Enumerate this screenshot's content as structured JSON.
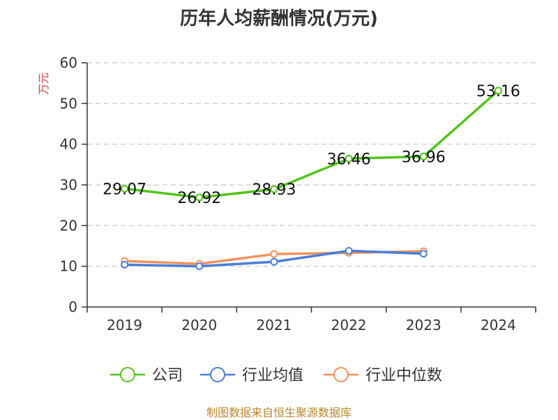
{
  "chart_data": {
    "type": "line",
    "title": "历年人均薪酬情况(万元)",
    "ylabel": "万元",
    "xlabel": "",
    "categories": [
      "2019",
      "2020",
      "2021",
      "2022",
      "2023",
      "2024"
    ],
    "ylim": [
      0,
      60
    ],
    "yticks": [
      0,
      10,
      20,
      30,
      40,
      50,
      60
    ],
    "grid": true,
    "legend_position": "bottom",
    "series": [
      {
        "name": "公司",
        "color": "#52c41a",
        "values": [
          29.07,
          26.92,
          28.93,
          36.46,
          36.96,
          53.16
        ],
        "labels": [
          "29.07",
          "26.92",
          "28.93",
          "36.46",
          "36.96",
          "53.16"
        ]
      },
      {
        "name": "行业均值",
        "color": "#4a7fd6",
        "values": [
          10.4,
          10.0,
          11.1,
          13.8,
          13.1,
          null
        ]
      },
      {
        "name": "行业中位数",
        "color": "#f2935b",
        "values": [
          11.3,
          10.6,
          13.0,
          13.3,
          13.7,
          null
        ]
      }
    ]
  },
  "source": "制图数据来自恒生聚源数据库",
  "colors": {
    "ylabel": "#e03c3c",
    "axis": "#333333",
    "grid": "#c8c8c8"
  }
}
